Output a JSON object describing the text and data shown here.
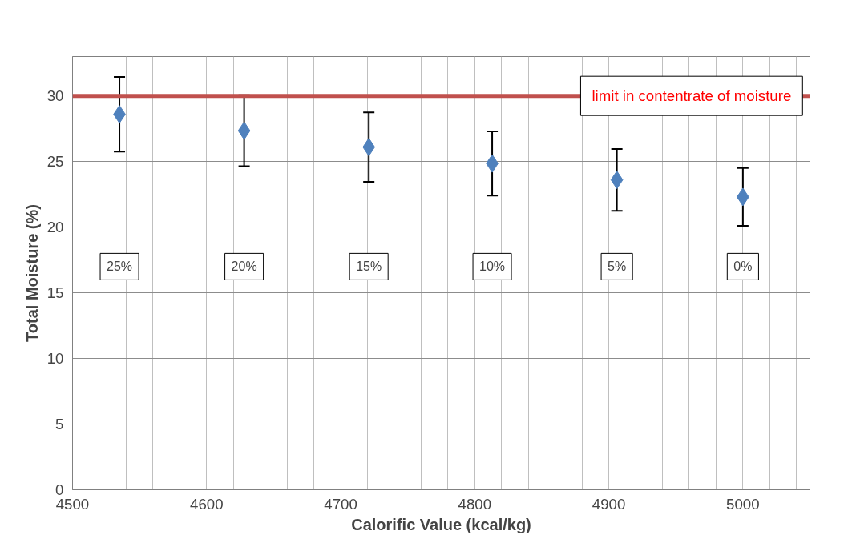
{
  "chart_data": {
    "type": "scatter",
    "xlabel": "Calorific Value (kcal/kg)",
    "ylabel": "Total Moisture (%)",
    "x": [
      4535,
      4628,
      4721,
      4813,
      4906,
      5000
    ],
    "series": [
      {
        "color": "#4f81bd",
        "values": [
          28.6,
          27.35,
          26.1,
          24.85,
          23.6,
          22.3
        ],
        "errors": [
          2.85,
          2.7,
          2.65,
          2.45,
          2.35,
          2.2
        ]
      }
    ],
    "marker": "diamond",
    "xlim": [
      4500,
      5050
    ],
    "xticks": [
      4500,
      {
        "value": 4520,
        "label": null
      },
      {
        "value": 4540,
        "label": null
      },
      {
        "value": 4560,
        "label": null
      },
      {
        "value": 4580,
        "label": null
      },
      4600,
      {
        "value": 4620,
        "label": null
      },
      {
        "value": 4640,
        "label": null
      },
      {
        "value": 4660,
        "label": null
      },
      {
        "value": 4680,
        "label": null
      },
      4700,
      {
        "value": 4720,
        "label": null
      },
      {
        "value": 4740,
        "label": null
      },
      {
        "value": 4760,
        "label": null
      },
      {
        "value": 4780,
        "label": null
      },
      4800,
      {
        "value": 4820,
        "label": null
      },
      {
        "value": 4840,
        "label": null
      },
      {
        "value": 4860,
        "label": null
      },
      {
        "value": 4880,
        "label": null
      },
      4900,
      {
        "value": 4920,
        "label": null
      },
      {
        "value": 4940,
        "label": null
      },
      {
        "value": 4960,
        "label": null
      },
      {
        "value": 4980,
        "label": null
      },
      5000,
      {
        "value": 5020,
        "label": null
      },
      {
        "value": 5040,
        "label": null
      }
    ],
    "ylim": [
      0,
      33
    ],
    "yticks": [
      0,
      5,
      10,
      15,
      20,
      25,
      30
    ],
    "grid": true,
    "ref_lines": [
      {
        "axis": "y",
        "value": 30,
        "label": "limit in contentrate of moisture",
        "color": "#c0504d"
      }
    ],
    "annotations": [
      "25%",
      "20%",
      "15%",
      "10%",
      "5%",
      "0%"
    ]
  }
}
